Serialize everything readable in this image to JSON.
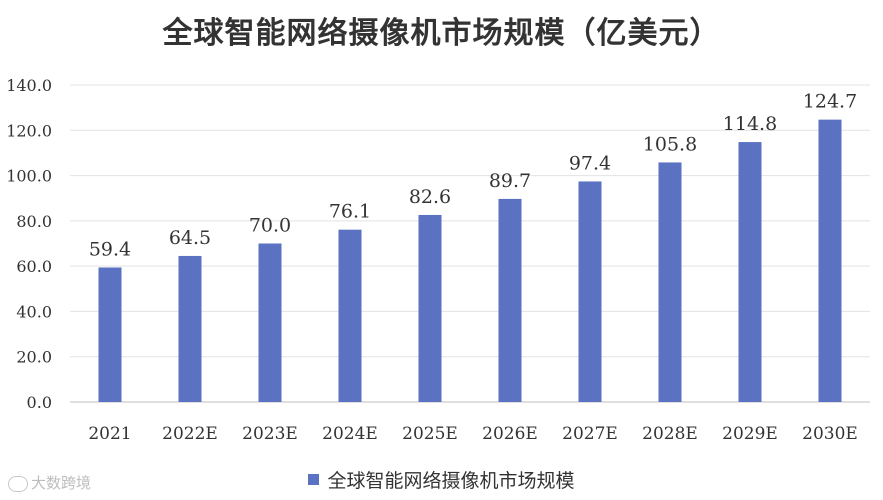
{
  "chart_data": {
    "type": "bar",
    "title": "全球智能网络摄像机市场规模（亿美元）",
    "categories": [
      "2021",
      "2022E",
      "2023E",
      "2024E",
      "2025E",
      "2026E",
      "2027E",
      "2028E",
      "2029E",
      "2030E"
    ],
    "series": [
      {
        "name": "全球智能网络摄像机市场规模",
        "values": [
          59.4,
          64.5,
          70.0,
          76.1,
          82.6,
          89.7,
          97.4,
          105.8,
          114.8,
          124.7
        ],
        "color": "#5b72c2"
      }
    ],
    "data_labels": [
      "59.4",
      "64.5",
      "70.0",
      "76.1",
      "82.6",
      "89.7",
      "97.4",
      "105.8",
      "114.8",
      "124.7"
    ],
    "yticks": [
      "0.0",
      "20.0",
      "40.0",
      "60.0",
      "80.0",
      "100.0",
      "120.0",
      "140.0"
    ],
    "ylim": [
      0,
      140
    ],
    "grid": true,
    "legend_position": "bottom"
  },
  "watermark": {
    "text": "大数跨境",
    "icon": "brand-logo-icon"
  }
}
